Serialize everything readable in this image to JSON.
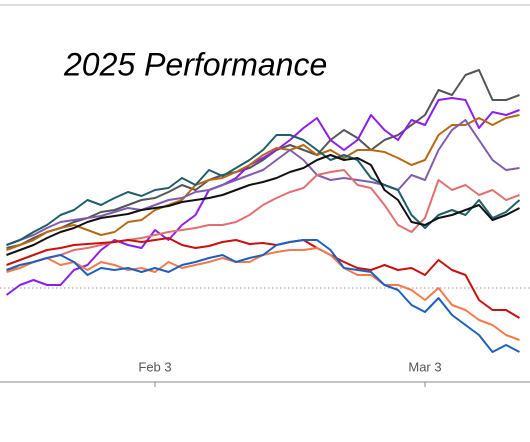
{
  "chart_data": {
    "type": "line",
    "title": "2025 Performance",
    "categories": [
      null,
      null,
      null,
      null,
      null,
      null,
      null,
      null,
      null,
      null,
      null,
      "Feb 3",
      null,
      null,
      null,
      null,
      null,
      null,
      null,
      null,
      null,
      null,
      null,
      null,
      null,
      null,
      null,
      null,
      null,
      null,
      null,
      "Mar 3",
      null,
      null,
      null,
      null,
      null,
      null,
      null
    ],
    "ylim": [
      -9.4,
      28.3
    ],
    "reference_line": 0,
    "series": [
      {
        "color": "#555555",
        "values": [
          4.0,
          4.3,
          5.0,
          5.6,
          6.0,
          6.6,
          7.0,
          7.6,
          7.8,
          8.3,
          8.8,
          9.0,
          9.6,
          10.3,
          9.8,
          10.8,
          11.3,
          11.6,
          12.0,
          12.8,
          13.8,
          14.3,
          13.8,
          13.3,
          14.8,
          15.8,
          15.0,
          13.8,
          14.8,
          15.3,
          16.3,
          17.3,
          19.8,
          19.3,
          21.3,
          21.8,
          18.8,
          18.8,
          19.3
        ]
      },
      {
        "color": "#8b1ef0",
        "values": [
          -0.7,
          0.3,
          0.8,
          0.3,
          0.3,
          1.8,
          2.3,
          3.8,
          4.8,
          4.3,
          4.0,
          5.8,
          4.8,
          6.3,
          7.3,
          9.8,
          10.3,
          11.0,
          12.3,
          13.0,
          13.8,
          14.8,
          16.0,
          17.0,
          14.8,
          13.8,
          14.8,
          17.3,
          15.8,
          14.8,
          16.8,
          16.3,
          18.8,
          19.0,
          18.8,
          16.0,
          17.6,
          17.3,
          17.8
        ]
      },
      {
        "color": "#b86a12",
        "values": [
          3.8,
          4.3,
          4.8,
          5.6,
          6.0,
          6.3,
          5.8,
          5.3,
          5.6,
          6.6,
          6.8,
          7.8,
          8.3,
          8.8,
          10.3,
          10.8,
          11.0,
          11.6,
          12.3,
          13.3,
          14.0,
          13.8,
          14.3,
          13.3,
          13.8,
          13.0,
          13.8,
          13.8,
          13.6,
          13.0,
          12.3,
          12.8,
          15.3,
          16.3,
          16.3,
          17.0,
          16.3,
          17.0,
          17.3
        ]
      },
      {
        "color": "#7e5cb0",
        "values": [
          4.3,
          4.8,
          5.3,
          6.0,
          6.6,
          6.8,
          7.0,
          7.2,
          7.6,
          8.0,
          7.8,
          8.3,
          8.8,
          9.0,
          9.6,
          9.8,
          10.3,
          10.8,
          11.3,
          11.8,
          12.8,
          13.8,
          12.8,
          11.3,
          10.8,
          11.0,
          10.8,
          10.6,
          10.3,
          9.8,
          11.3,
          10.8,
          13.8,
          15.8,
          16.8,
          14.8,
          12.8,
          11.8,
          12.0
        ]
      },
      {
        "color": "#e07070",
        "values": [
          1.8,
          2.0,
          2.6,
          3.0,
          3.3,
          3.8,
          4.0,
          4.3,
          4.6,
          4.8,
          5.0,
          5.3,
          5.6,
          5.8,
          6.0,
          6.3,
          6.3,
          6.6,
          7.3,
          8.3,
          9.0,
          9.6,
          10.0,
          11.3,
          11.6,
          11.8,
          10.3,
          10.0,
          8.3,
          6.3,
          5.6,
          7.0,
          10.8,
          9.8,
          10.3,
          9.3,
          9.8,
          8.8,
          9.3
        ]
      },
      {
        "color": "#1f5f6b",
        "values": [
          4.3,
          4.8,
          5.6,
          6.3,
          7.3,
          7.8,
          8.8,
          8.3,
          9.0,
          9.6,
          9.2,
          9.8,
          10.0,
          11.0,
          10.3,
          11.8,
          11.2,
          12.0,
          12.8,
          13.8,
          15.3,
          15.3,
          14.8,
          13.8,
          12.8,
          13.3,
          12.8,
          11.0,
          10.3,
          9.8,
          7.3,
          6.0,
          7.3,
          7.8,
          7.3,
          8.8,
          7.0,
          7.6,
          8.8
        ]
      },
      {
        "color": "#111111",
        "values": [
          3.3,
          3.8,
          4.3,
          5.0,
          5.6,
          6.0,
          6.6,
          7.0,
          7.2,
          7.4,
          7.8,
          8.0,
          8.2,
          8.6,
          8.8,
          9.0,
          9.3,
          9.8,
          10.3,
          10.6,
          11.0,
          11.6,
          12.0,
          12.8,
          13.3,
          12.8,
          13.0,
          12.3,
          9.8,
          8.8,
          6.6,
          6.3,
          7.0,
          7.3,
          7.8,
          8.3,
          6.8,
          7.3,
          8.0
        ]
      },
      {
        "color": "#c8100c",
        "values": [
          2.3,
          2.8,
          3.3,
          3.8,
          4.0,
          4.3,
          4.4,
          4.5,
          4.6,
          4.8,
          4.6,
          4.8,
          5.0,
          4.3,
          4.0,
          4.2,
          4.6,
          4.8,
          4.4,
          4.5,
          4.3,
          4.6,
          4.8,
          4.0,
          3.3,
          2.6,
          2.0,
          1.8,
          2.3,
          1.8,
          2.0,
          1.3,
          2.8,
          1.8,
          1.3,
          -1.2,
          -2.2,
          -2.2,
          -3.0
        ]
      },
      {
        "color": "#f47a4a",
        "values": [
          1.6,
          2.0,
          2.6,
          3.0,
          2.3,
          2.6,
          1.8,
          2.6,
          2.3,
          1.8,
          2.0,
          1.6,
          2.6,
          2.0,
          2.3,
          2.6,
          3.0,
          2.6,
          2.6,
          3.3,
          3.6,
          3.8,
          3.8,
          4.0,
          3.3,
          2.0,
          1.3,
          1.3,
          0.3,
          0.3,
          -0.2,
          -1.2,
          0.0,
          -1.7,
          -2.2,
          -3.2,
          -3.7,
          -4.7,
          -5.2
        ]
      },
      {
        "color": "#1f5fbf",
        "values": [
          1.8,
          2.3,
          2.6,
          3.0,
          3.3,
          2.6,
          1.3,
          2.0,
          1.8,
          2.0,
          1.6,
          2.0,
          1.6,
          2.3,
          2.6,
          3.0,
          3.3,
          2.6,
          3.0,
          3.3,
          4.3,
          4.6,
          4.8,
          4.8,
          3.8,
          2.0,
          1.8,
          1.6,
          0.3,
          -0.2,
          -1.7,
          -2.4,
          -1.0,
          -2.7,
          -3.7,
          -4.7,
          -6.4,
          -5.7,
          -6.4
        ]
      }
    ]
  }
}
